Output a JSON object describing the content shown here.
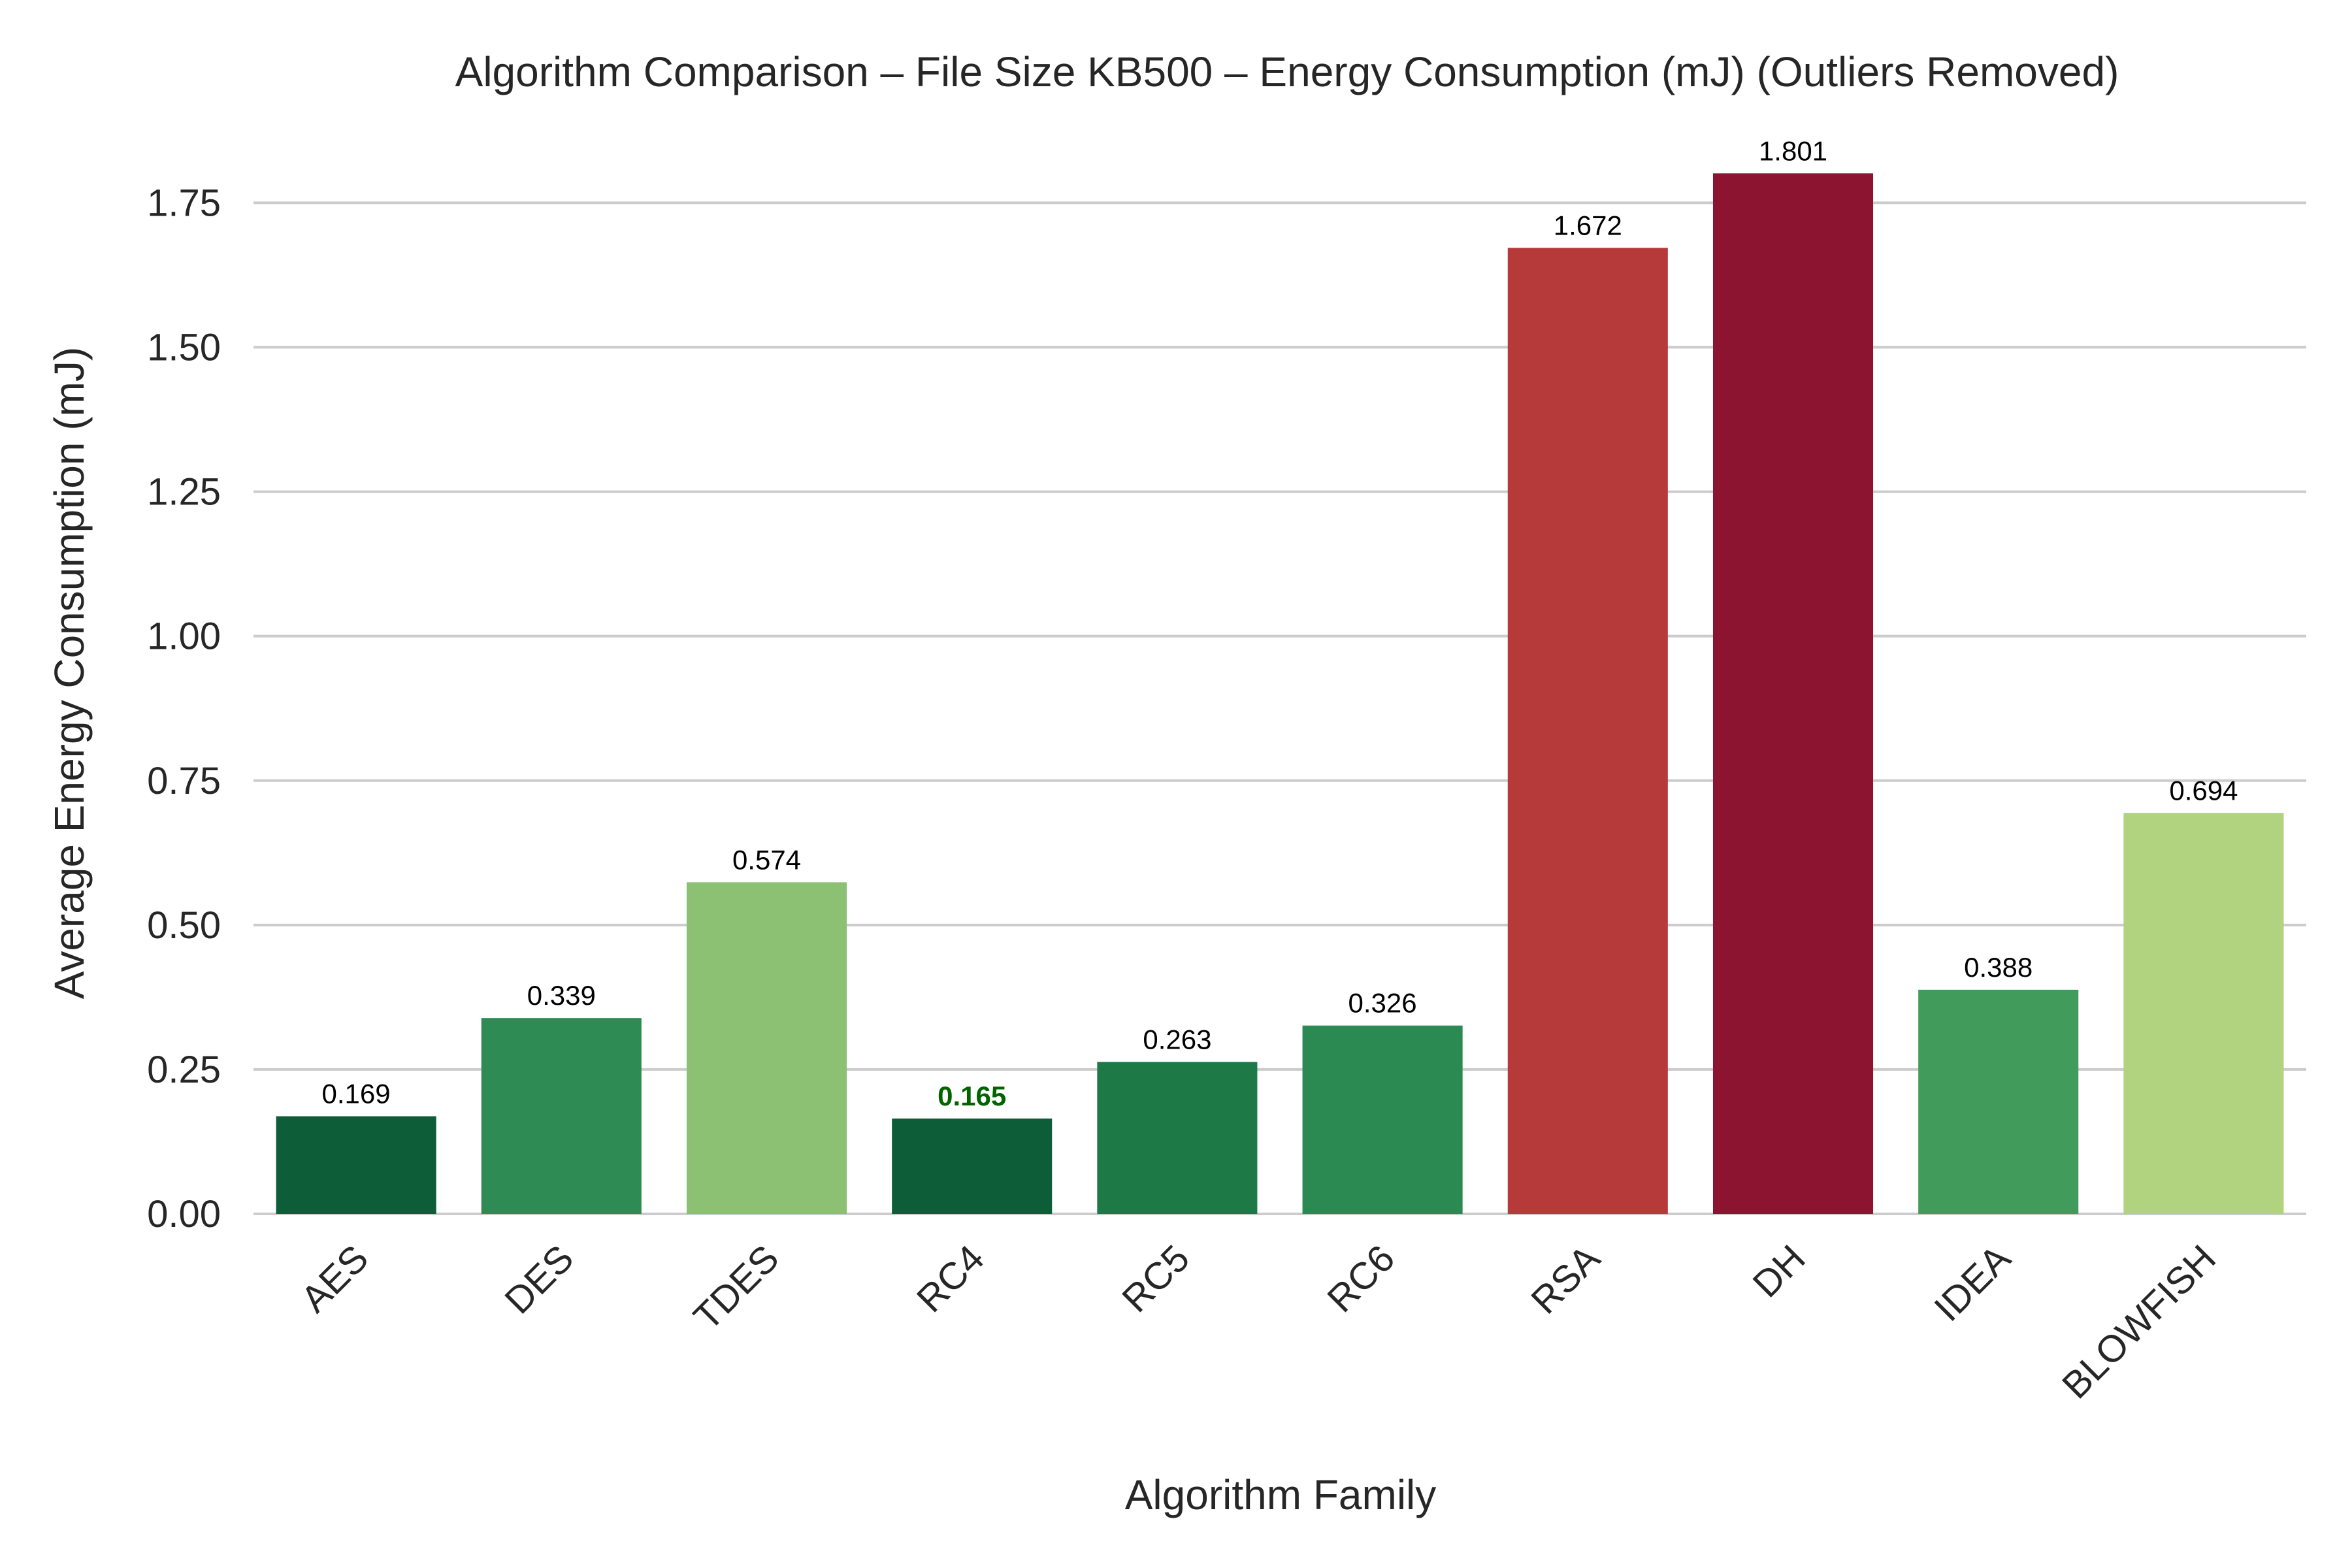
{
  "chart_data": {
    "type": "bar",
    "title": "Algorithm Comparison – File Size KB500 – Energy Consumption (mJ) (Outliers Removed)",
    "xlabel": "Algorithm Family",
    "ylabel": "Average Energy Consumption (mJ)",
    "categories": [
      "AES",
      "DES",
      "TDES",
      "RC4",
      "RC5",
      "RC6",
      "RSA",
      "DH",
      "IDEA",
      "BLOWFISH"
    ],
    "values": [
      0.169,
      0.339,
      0.574,
      0.165,
      0.263,
      0.326,
      1.672,
      1.801,
      0.388,
      0.694
    ],
    "value_labels": [
      "0.169",
      "0.339",
      "0.574",
      "0.165",
      "0.263",
      "0.326",
      "1.672",
      "1.801",
      "0.388",
      "0.694"
    ],
    "colors": [
      "#0d5e38",
      "#2e8b53",
      "#8cc174",
      "#0d5e38",
      "#1d7a47",
      "#2a8a52",
      "#b73a3a",
      "#8c1430",
      "#419b5a",
      "#b1d27f"
    ],
    "highlight_index": 3,
    "highlight_color": "#006400",
    "ylim": [
      0,
      1.85
    ],
    "yticks": [
      0,
      0.25,
      0.5,
      0.75,
      1.0,
      1.25,
      1.5,
      1.75
    ],
    "ytick_labels": [
      "0.00",
      "0.25",
      "0.50",
      "0.75",
      "1.00",
      "1.25",
      "1.50",
      "1.75"
    ],
    "grid": true,
    "xtick_rotation": -45
  }
}
